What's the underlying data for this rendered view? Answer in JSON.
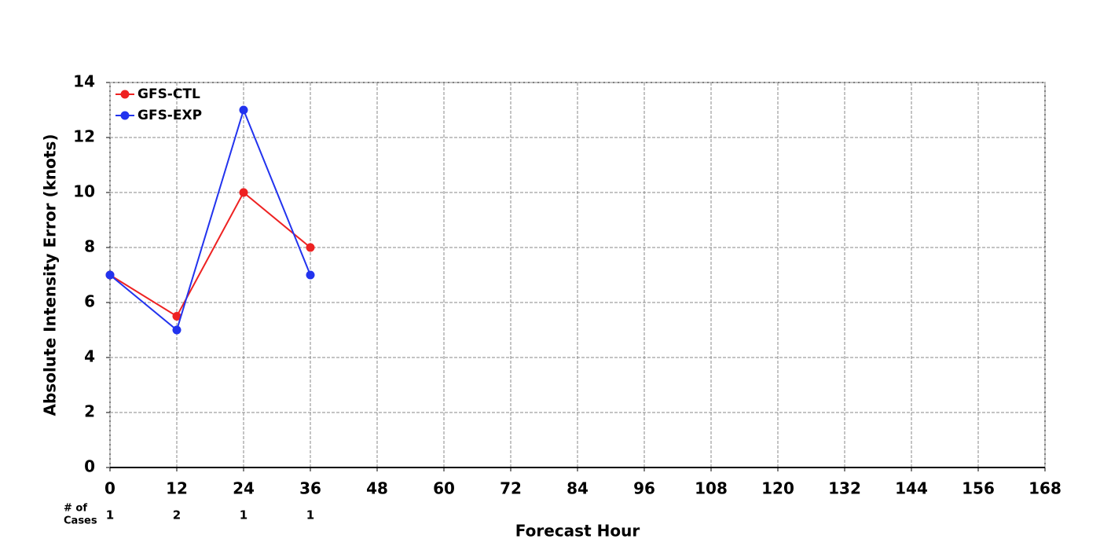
{
  "chart_data": {
    "type": "line",
    "xlabel": "Forecast Hour",
    "ylabel": "Absolute Intensity Error (knots)",
    "x": [
      0,
      12,
      24,
      36
    ],
    "series": [
      {
        "name": "GFS-CTL",
        "color": "#ee2222",
        "values": [
          7,
          5.5,
          10,
          8
        ]
      },
      {
        "name": "GFS-EXP",
        "color": "#2233ee",
        "values": [
          7,
          5,
          13,
          7
        ]
      }
    ],
    "xlim": [
      0,
      168
    ],
    "xticks": [
      0,
      12,
      24,
      36,
      48,
      60,
      72,
      84,
      96,
      108,
      120,
      132,
      144,
      156,
      168
    ],
    "ylim": [
      0,
      14
    ],
    "yticks": [
      0,
      2,
      4,
      6,
      8,
      10,
      12,
      14
    ],
    "grid": true,
    "legend": "upper left",
    "cases_label": [
      "# of",
      "Cases"
    ],
    "cases": [
      1,
      2,
      1,
      1
    ]
  }
}
